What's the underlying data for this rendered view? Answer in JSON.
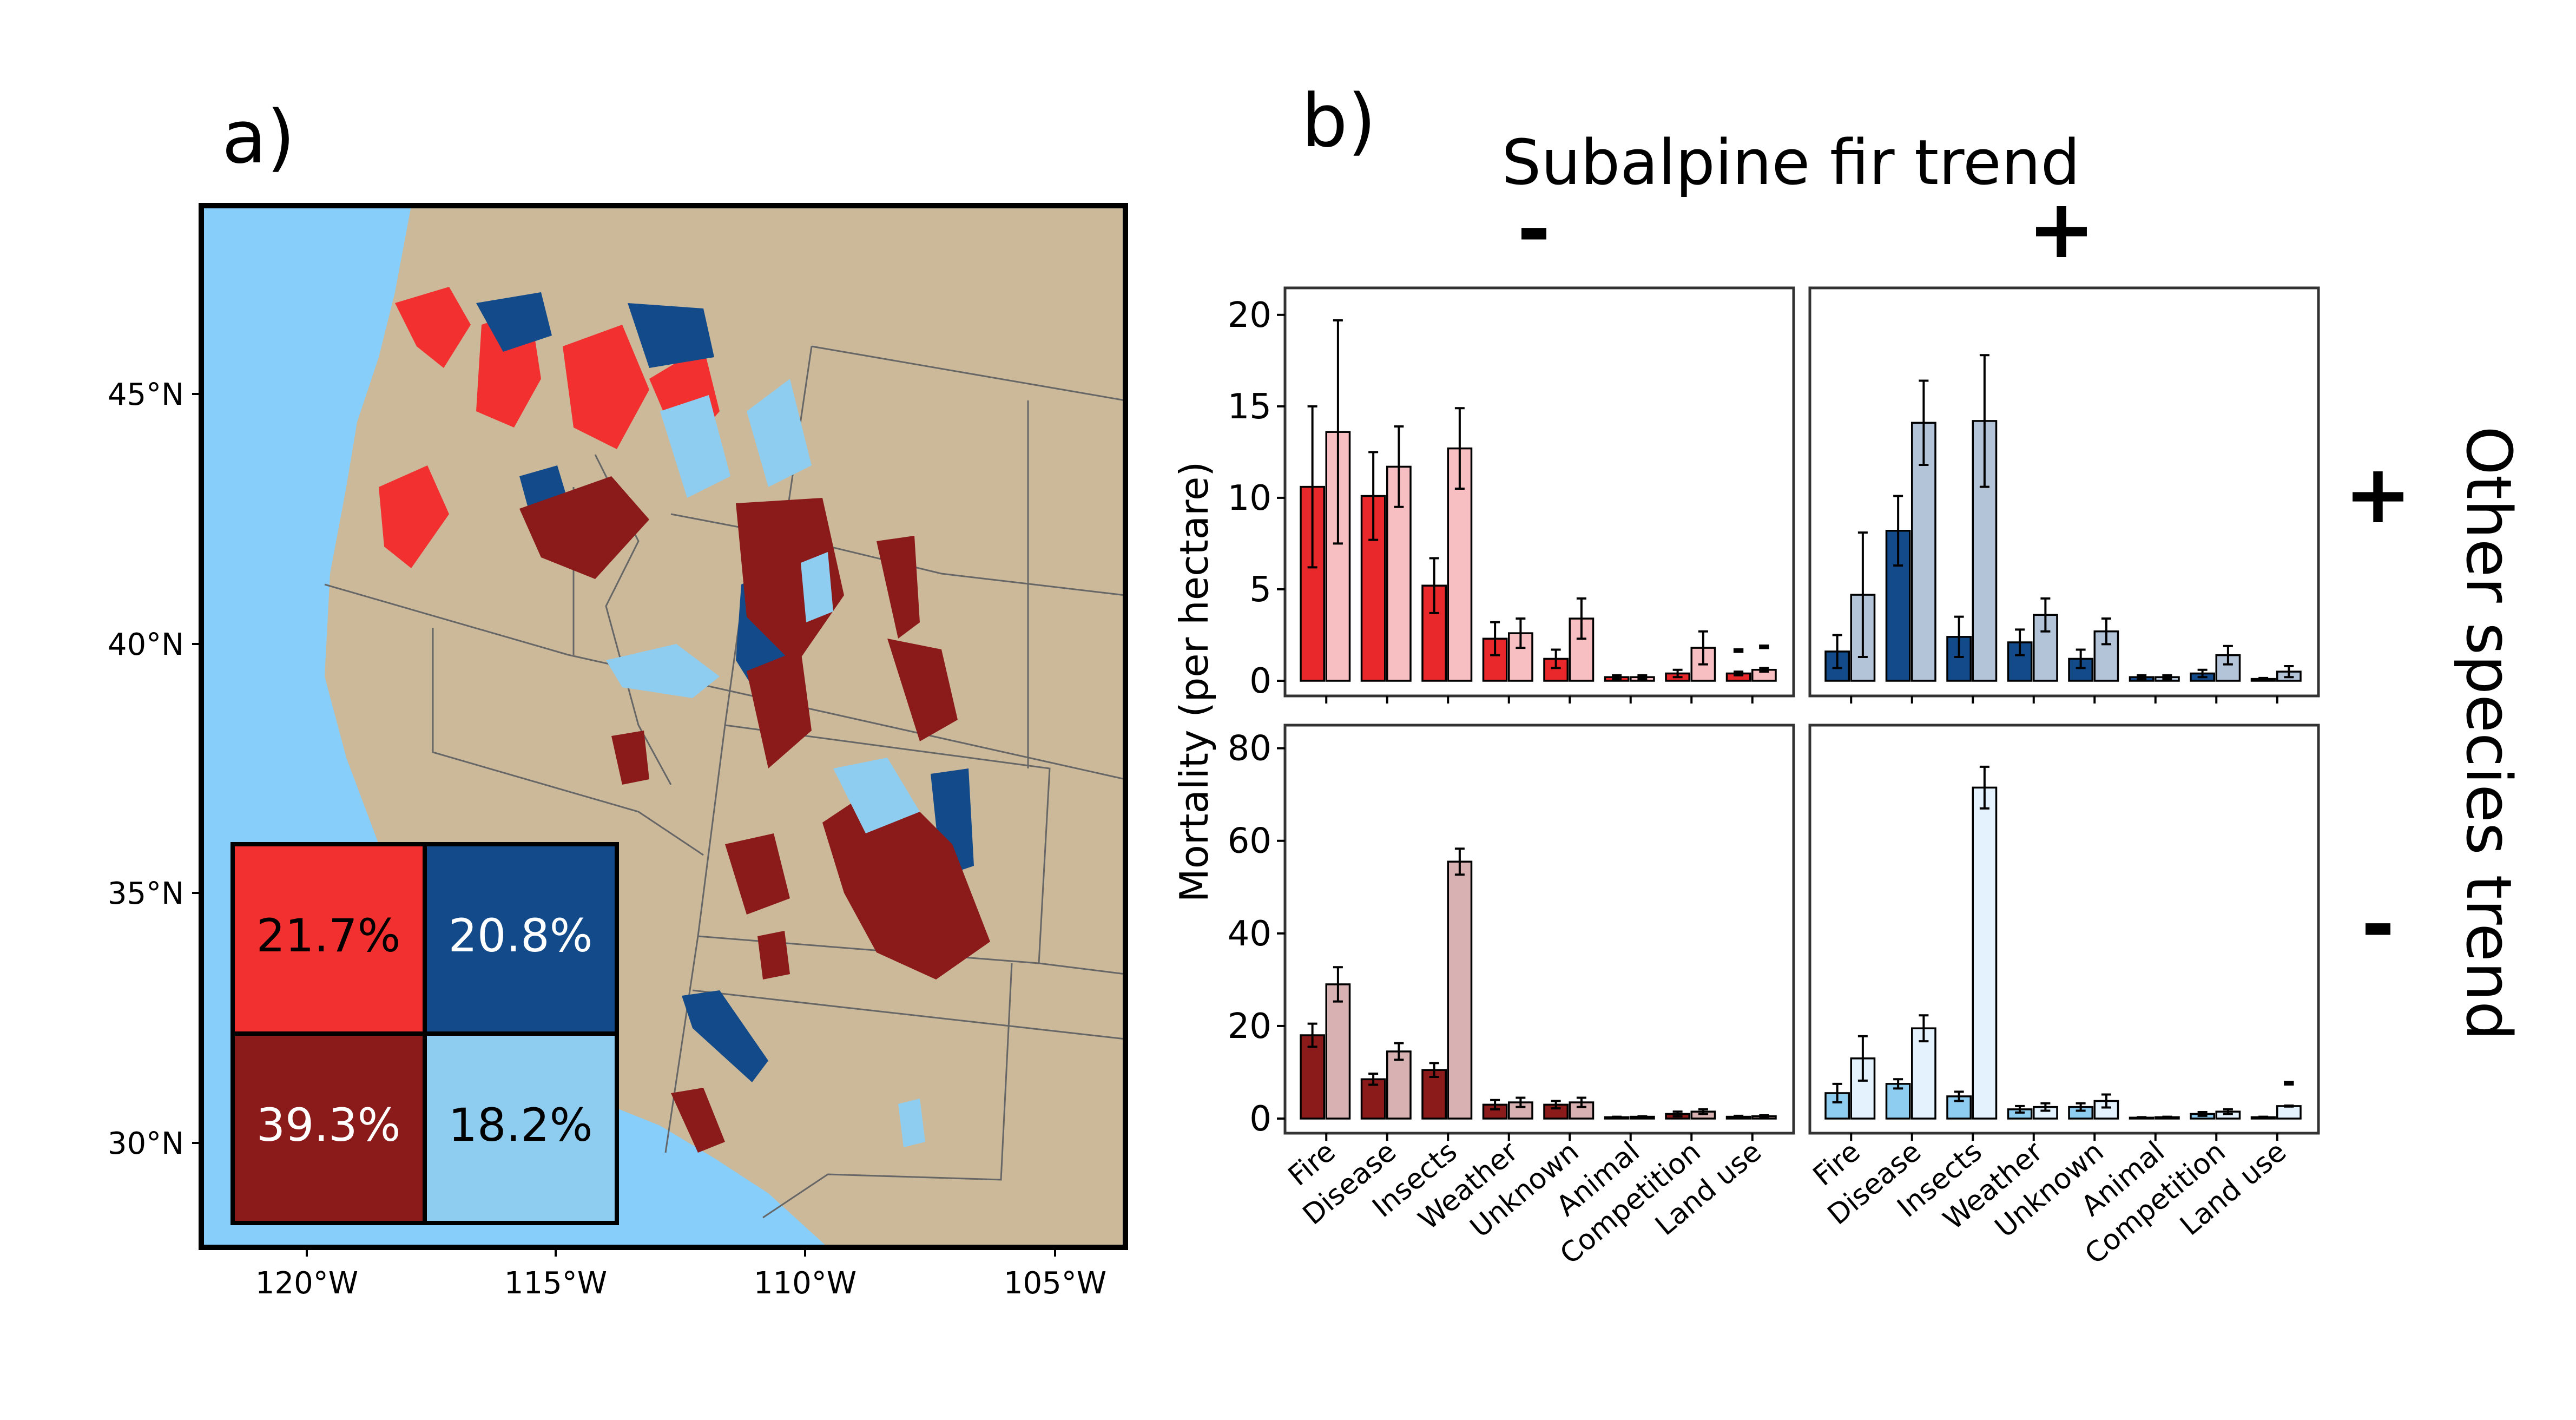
{
  "panel_a": {
    "label": "a)",
    "lat_ticks": [
      "45°N",
      "40°N",
      "35°N",
      "30°N"
    ],
    "lon_ticks": [
      "120°W",
      "115°W",
      "110°W",
      "105°W"
    ],
    "quadrant_percentages": {
      "fir_down_other_up": "21.7%",
      "fir_up_other_up": "20.8%",
      "fir_down_other_down": "39.3%",
      "fir_up_other_down": "18.2%"
    },
    "colors": {
      "ocean": "#87cefa",
      "land": "#cbb99a",
      "fir_down_other_up": "#f23030",
      "fir_up_other_up": "#124a8a",
      "fir_down_other_down": "#8b1a1a",
      "fir_up_other_down": "#8fcdf0"
    }
  },
  "panel_b": {
    "label": "b)",
    "column_title": "Subalpine fir trend",
    "column_signs": [
      "-",
      "+"
    ],
    "row_title": "Other species trend",
    "row_signs": [
      "+",
      "-"
    ],
    "ylabel": "Mortality (per hectare)",
    "categories": [
      "Fire",
      "Disease",
      "Insects",
      "Weather",
      "Unknown",
      "Animal",
      "Competition",
      "Land use"
    ]
  },
  "chart_data": [
    {
      "type": "bar",
      "subalpine_fir_trend": "-",
      "other_species_trend": "+",
      "categories": [
        "Fire",
        "Disease",
        "Insects",
        "Weather",
        "Unknown",
        "Animal",
        "Competition",
        "Land use"
      ],
      "ylim": [
        0,
        21
      ],
      "yticks": [
        0,
        5,
        10,
        15,
        20
      ],
      "colors": [
        "#e8282a",
        "#f7bfc2"
      ],
      "series": [
        {
          "values": [
            10.6,
            10.1,
            5.2,
            2.3,
            1.2,
            0.2,
            0.4,
            0.4
          ],
          "errors": [
            4.4,
            2.4,
            1.5,
            0.9,
            0.5,
            0.1,
            0.2,
            0.1
          ]
        },
        {
          "values": [
            13.6,
            11.7,
            12.7,
            2.6,
            3.4,
            0.2,
            1.8,
            0.6
          ],
          "errors": [
            6.1,
            2.2,
            2.2,
            0.8,
            1.1,
            0.1,
            0.9,
            0.1
          ]
        }
      ],
      "missing_error_marks": [
        "-",
        "-"
      ]
    },
    {
      "type": "bar",
      "subalpine_fir_trend": "+",
      "other_species_trend": "+",
      "categories": [
        "Fire",
        "Disease",
        "Insects",
        "Weather",
        "Unknown",
        "Animal",
        "Competition",
        "Land use"
      ],
      "ylim": [
        0,
        21
      ],
      "yticks": [
        0,
        5,
        10,
        15,
        20
      ],
      "colors": [
        "#124a8a",
        "#b4c4d8"
      ],
      "series": [
        {
          "values": [
            1.6,
            8.2,
            2.4,
            2.1,
            1.2,
            0.2,
            0.4,
            0.1
          ],
          "errors": [
            0.9,
            1.9,
            1.1,
            0.7,
            0.5,
            0.1,
            0.2,
            0.05
          ]
        },
        {
          "values": [
            4.7,
            14.1,
            14.2,
            3.6,
            2.7,
            0.2,
            1.4,
            0.5
          ],
          "errors": [
            3.4,
            2.3,
            3.6,
            0.9,
            0.7,
            0.1,
            0.5,
            0.3
          ]
        }
      ],
      "missing_error_marks": []
    },
    {
      "type": "bar",
      "subalpine_fir_trend": "-",
      "other_species_trend": "-",
      "categories": [
        "Fire",
        "Disease",
        "Insects",
        "Weather",
        "Unknown",
        "Animal",
        "Competition",
        "Land use"
      ],
      "ylim": [
        0,
        83
      ],
      "yticks": [
        0,
        20,
        40,
        60,
        80
      ],
      "colors": [
        "#8b1a1a",
        "#d8b2b2"
      ],
      "series": [
        {
          "values": [
            18,
            8.5,
            10.5,
            3,
            3,
            0.3,
            1,
            0.4
          ],
          "errors": [
            2.5,
            1.2,
            1.5,
            1,
            0.8,
            0.1,
            0.5,
            0.2
          ]
        },
        {
          "values": [
            29,
            14.5,
            55.5,
            3.5,
            3.5,
            0.4,
            1.5,
            0.5
          ],
          "errors": [
            3.7,
            1.8,
            2.8,
            1,
            1,
            0.1,
            0.5,
            0.2
          ]
        }
      ],
      "missing_error_marks": []
    },
    {
      "type": "bar",
      "subalpine_fir_trend": "+",
      "other_species_trend": "-",
      "categories": [
        "Fire",
        "Disease",
        "Insects",
        "Weather",
        "Unknown",
        "Animal",
        "Competition",
        "Land use"
      ],
      "ylim": [
        0,
        83
      ],
      "yticks": [
        0,
        20,
        40,
        60,
        80
      ],
      "colors": [
        "#8fcdf0",
        "#e3f2fd"
      ],
      "series": [
        {
          "values": [
            5.5,
            7.5,
            4.8,
            2,
            2.5,
            0.2,
            1,
            0.3
          ],
          "errors": [
            2,
            1,
            1,
            0.7,
            0.8,
            0.1,
            0.4,
            0.1
          ]
        },
        {
          "values": [
            13,
            19.5,
            71.5,
            2.5,
            3.8,
            0.3,
            1.5,
            2.7
          ],
          "errors": [
            4.8,
            2.8,
            4.5,
            0.8,
            1.4,
            0.1,
            0.5,
            0.1
          ]
        }
      ],
      "missing_error_marks": [
        "-"
      ]
    }
  ]
}
